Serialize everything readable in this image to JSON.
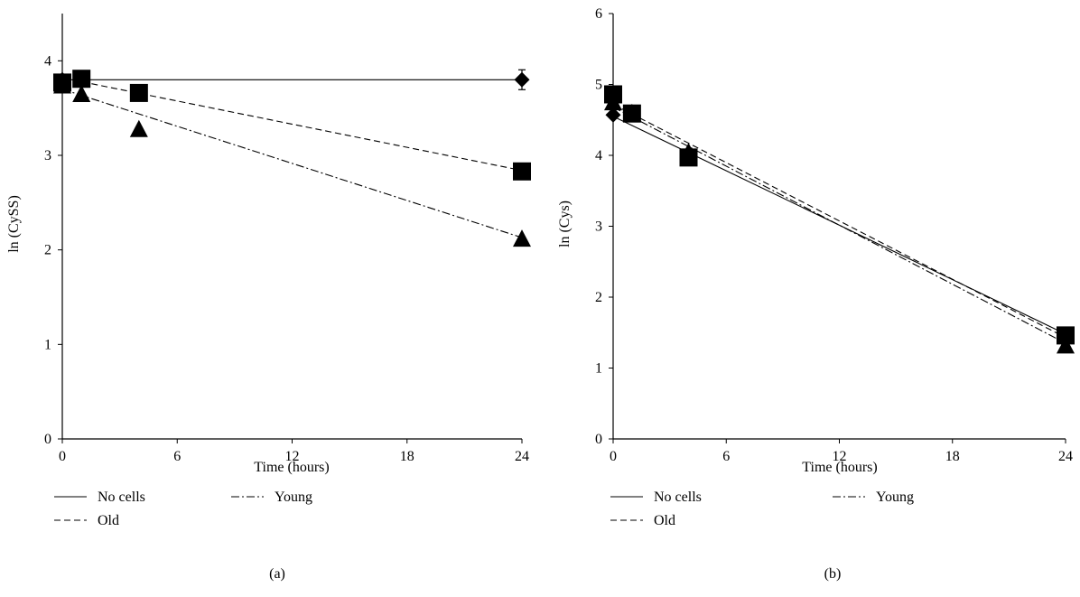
{
  "chart_data": [
    {
      "type": "line",
      "panel_label": "(a)",
      "xlabel": "Time (hours)",
      "ylabel": "ln (CySS)",
      "xlim": [
        0,
        24
      ],
      "ylim": [
        0,
        4.5
      ],
      "xticks": [
        0,
        6,
        12,
        18,
        24
      ],
      "yticks": [
        0,
        1,
        2,
        3,
        4
      ],
      "grid": false,
      "legend_position": "bottom",
      "series": [
        {
          "name": "No cells",
          "dash": "solid",
          "marker": "diamond",
          "points": [
            {
              "x": 0,
              "y": 3.8
            },
            {
              "x": 24,
              "y": 3.8
            }
          ],
          "fit": [
            [
              0,
              3.8
            ],
            [
              24,
              3.8
            ]
          ]
        },
        {
          "name": "Old",
          "dash": "dashed",
          "marker": "square",
          "points": [
            {
              "x": 0,
              "y": 3.77
            },
            {
              "x": 1,
              "y": 3.81
            },
            {
              "x": 4,
              "y": 3.66
            },
            {
              "x": 24,
              "y": 2.83
            }
          ],
          "fit": [
            [
              0,
              3.82
            ],
            [
              24,
              2.84
            ]
          ]
        },
        {
          "name": "Young",
          "dash": "dashdot",
          "marker": "triangle",
          "points": [
            {
              "x": 0,
              "y": 3.74
            },
            {
              "x": 1,
              "y": 3.65
            },
            {
              "x": 4,
              "y": 3.28
            },
            {
              "x": 24,
              "y": 2.12
            }
          ],
          "fit": [
            [
              0,
              3.7
            ],
            [
              24,
              2.13
            ]
          ]
        }
      ]
    },
    {
      "type": "line",
      "panel_label": "(b)",
      "xlabel": "Time (hours)",
      "ylabel": "ln (Cys)",
      "xlim": [
        0,
        24
      ],
      "ylim": [
        0,
        6
      ],
      "xticks": [
        0,
        6,
        12,
        18,
        24
      ],
      "yticks": [
        0,
        1,
        2,
        3,
        4,
        5,
        6
      ],
      "grid": false,
      "legend_position": "bottom",
      "series": [
        {
          "name": "No cells",
          "dash": "solid",
          "marker": "diamond",
          "points": [
            {
              "x": 0,
              "y": 4.57
            },
            {
              "x": 1,
              "y": 4.58
            },
            {
              "x": 4,
              "y": 4.0
            },
            {
              "x": 24,
              "y": 1.45
            }
          ],
          "fit": [
            [
              0,
              4.55
            ],
            [
              24,
              1.48
            ]
          ]
        },
        {
          "name": "Old",
          "dash": "dashed",
          "marker": "square",
          "points": [
            {
              "x": 0,
              "y": 4.86
            },
            {
              "x": 1,
              "y": 4.59
            },
            {
              "x": 4,
              "y": 3.97
            },
            {
              "x": 24,
              "y": 1.46
            }
          ],
          "fit": [
            [
              0,
              4.72
            ],
            [
              24,
              1.43
            ]
          ]
        },
        {
          "name": "Young",
          "dash": "dashdot",
          "marker": "triangle",
          "points": [
            {
              "x": 0,
              "y": 4.75
            },
            {
              "x": 1,
              "y": 4.6
            },
            {
              "x": 4,
              "y": 4.05
            },
            {
              "x": 24,
              "y": 1.32
            }
          ],
          "fit": [
            [
              0,
              4.68
            ],
            [
              24,
              1.35
            ]
          ]
        }
      ]
    }
  ]
}
